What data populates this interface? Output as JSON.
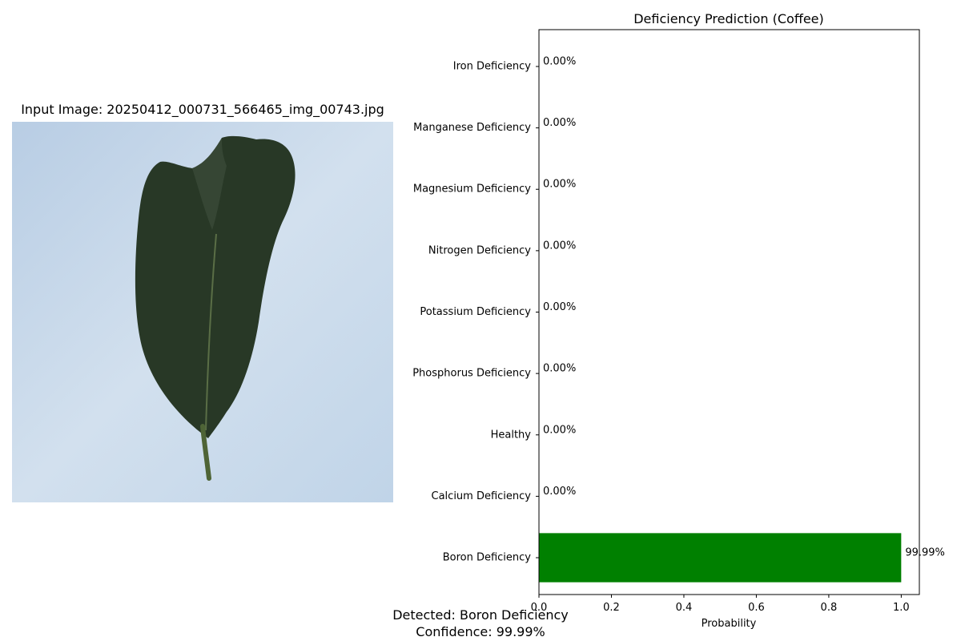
{
  "image_panel": {
    "title": "Input Image: 20250412_000731_566465_img_00743.jpg",
    "background_color": "#c9d9e8",
    "leaf_color": "#283826"
  },
  "summary": {
    "detected": "Detected: Boron Deficiency",
    "confidence": "Confidence: 99.99%"
  },
  "chart_data": {
    "type": "bar",
    "orientation": "horizontal",
    "title": "Deficiency Prediction (Coffee)",
    "xlabel": "Probability",
    "ylabel": "",
    "xlim": [
      0,
      1.05
    ],
    "x_ticks": [
      "0.0",
      "0.2",
      "0.4",
      "0.6",
      "0.8",
      "1.0"
    ],
    "categories": [
      "Boron Deficiency",
      "Calcium Deficiency",
      "Healthy",
      "Phosphorus Deficiency",
      "Potassium Deficiency",
      "Nitrogen Deficiency",
      "Magnesium Deficiency",
      "Manganese Deficiency",
      "Iron Deficiency"
    ],
    "values": [
      0.9999,
      0,
      0,
      0,
      0,
      0,
      0,
      0,
      0
    ],
    "value_labels": [
      "99.99%",
      "0.00%",
      "0.00%",
      "0.00%",
      "0.00%",
      "0.00%",
      "0.00%",
      "0.00%",
      "0.00%"
    ],
    "bar_color": "#008000",
    "grid": false,
    "legend": "none"
  }
}
